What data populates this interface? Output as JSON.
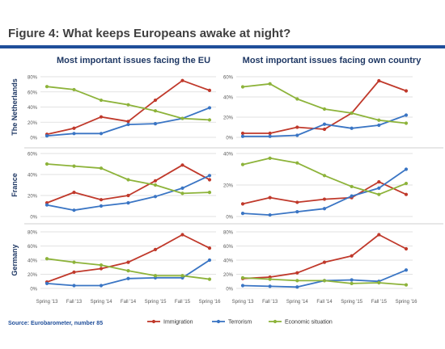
{
  "page": {
    "title": "Figure 4: What keeps Europeans awake at night?",
    "column_titles": [
      "Most important issues facing the EU",
      "Most important issues facing own country"
    ],
    "row_titles": [
      "The Netherlands",
      "France",
      "Germany"
    ],
    "source": "Source: Eurobarometer, number 85"
  },
  "colors": {
    "title": "#404040",
    "accent_bar": "#1f4e9a",
    "subtitle": "#1f3864",
    "row_title": "#1f3864",
    "source": "#1f4e9a",
    "grid": "#d9d9d9",
    "axis_text": "#595959"
  },
  "legend": [
    {
      "name": "Immigration",
      "color": "#c0392b"
    },
    {
      "name": "Terrorism",
      "color": "#3a75c4"
    },
    {
      "name": "Economic situation",
      "color": "#8db33a"
    }
  ],
  "chart_data": [
    {
      "type": "line",
      "row": "The Netherlands",
      "column": "Most important issues facing the EU",
      "categories": [
        "Spring '13",
        "Fall '13",
        "Spring '14",
        "Fall '14",
        "Spring '15",
        "Fall '15",
        "Spring '16"
      ],
      "ylim": [
        0,
        80
      ],
      "yticks": [
        "0%",
        "20%",
        "40%",
        "60%",
        "80%"
      ],
      "series": [
        {
          "name": "Immigration",
          "values": [
            4,
            12,
            27,
            21,
            49,
            75,
            62
          ]
        },
        {
          "name": "Terrorism",
          "values": [
            2,
            5,
            5,
            17,
            18,
            25,
            39
          ]
        },
        {
          "name": "Economic situation",
          "values": [
            67,
            63,
            49,
            43,
            35,
            25,
            23
          ]
        }
      ]
    },
    {
      "type": "line",
      "row": "The Netherlands",
      "column": "Most important issues facing own country",
      "categories": [
        "Spring '13",
        "Fall '13",
        "Spring '14",
        "Fall '14",
        "Spring '15",
        "Fall '15",
        "Spring '16"
      ],
      "ylim": [
        0,
        60
      ],
      "yticks": [
        "0%",
        "20%",
        "40%",
        "60%"
      ],
      "series": [
        {
          "name": "Immigration",
          "values": [
            4,
            4,
            10,
            8,
            24,
            56,
            46
          ]
        },
        {
          "name": "Terrorism",
          "values": [
            1,
            1,
            2,
            13,
            9,
            12,
            22
          ]
        },
        {
          "name": "Economic situation",
          "values": [
            50,
            53,
            38,
            28,
            24,
            17,
            14
          ]
        }
      ]
    },
    {
      "type": "line",
      "row": "France",
      "column": "Most important issues facing the EU",
      "categories": [
        "Spring '13",
        "Fall '13",
        "Spring '14",
        "Fall '14",
        "Spring '15",
        "Fall '15",
        "Spring '16"
      ],
      "ylim": [
        0,
        60
      ],
      "yticks": [
        "0%",
        "20%",
        "40%",
        "60%"
      ],
      "series": [
        {
          "name": "Immigration",
          "values": [
            13,
            23,
            16,
            20,
            34,
            49,
            35
          ]
        },
        {
          "name": "Terrorism",
          "values": [
            11,
            6,
            10,
            13,
            19,
            27,
            39
          ]
        },
        {
          "name": "Economic situation",
          "values": [
            50,
            48,
            46,
            35,
            30,
            22,
            23
          ]
        }
      ]
    },
    {
      "type": "line",
      "row": "France",
      "column": "Most important issues facing own country",
      "categories": [
        "Spring '13",
        "Fall '13",
        "Spring '14",
        "Fall '14",
        "Spring '15",
        "Fall '15",
        "Spring '16"
      ],
      "ylim": [
        0,
        40
      ],
      "yticks": [
        "0%",
        "20%",
        "40%"
      ],
      "series": [
        {
          "name": "Immigration",
          "values": [
            8,
            12,
            9,
            11,
            12,
            22,
            14
          ]
        },
        {
          "name": "Terrorism",
          "values": [
            2,
            1,
            3,
            5,
            13,
            18,
            30
          ]
        },
        {
          "name": "Economic situation",
          "values": [
            33,
            37,
            34,
            26,
            19,
            14,
            21
          ]
        }
      ]
    },
    {
      "type": "line",
      "row": "Germany",
      "column": "Most important issues facing the EU",
      "categories": [
        "Spring '13",
        "Fall '13",
        "Spring '14",
        "Fall '14",
        "Spring '15",
        "Fall '15",
        "Spring '16"
      ],
      "ylim": [
        0,
        80
      ],
      "yticks": [
        "0%",
        "20%",
        "40%",
        "60%",
        "80%"
      ],
      "series": [
        {
          "name": "Immigration",
          "values": [
            9,
            23,
            28,
            37,
            55,
            76,
            57
          ]
        },
        {
          "name": "Terrorism",
          "values": [
            7,
            4,
            4,
            14,
            15,
            15,
            40
          ]
        },
        {
          "name": "Economic situation",
          "values": [
            42,
            37,
            33,
            25,
            18,
            18,
            13
          ]
        }
      ]
    },
    {
      "type": "line",
      "row": "Germany",
      "column": "Most important issues facing own country",
      "categories": [
        "Spring '13",
        "Fall '13",
        "Spring '14",
        "Fall '14",
        "Spring '15",
        "Fall '15",
        "Spring '16"
      ],
      "ylim": [
        0,
        80
      ],
      "yticks": [
        "0%",
        "20%",
        "40%",
        "60%",
        "80%"
      ],
      "series": [
        {
          "name": "Immigration",
          "values": [
            14,
            16,
            22,
            37,
            46,
            76,
            56
          ]
        },
        {
          "name": "Terrorism",
          "values": [
            4,
            3,
            2,
            11,
            12,
            10,
            26
          ]
        },
        {
          "name": "Economic situation",
          "values": [
            15,
            13,
            11,
            11,
            7,
            8,
            5
          ]
        }
      ]
    }
  ]
}
